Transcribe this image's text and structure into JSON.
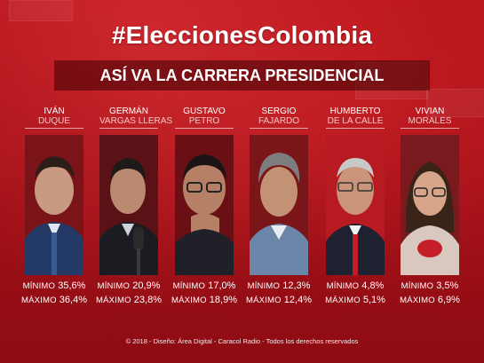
{
  "hashtag": "#EleccionesColombia",
  "subtitle": "ASÍ VA LA CARRERA PRESIDENCIAL",
  "candidates": [
    {
      "first": "IVÁN",
      "last": "DUQUE",
      "min_label": "MÍNIMO",
      "min": "35,6%",
      "max_label": "MÁXIMO",
      "max": "36,4%"
    },
    {
      "first": "GERMÁN",
      "last": "VARGAS LLERAS",
      "min_label": "MÍNIMO",
      "min": "20,9%",
      "max_label": "MÁXIMO",
      "max": "23,8%"
    },
    {
      "first": "GUSTAVO",
      "last": "PETRO",
      "min_label": "MÍNIMO",
      "min": "17,0%",
      "max_label": "MÁXIMO",
      "max": "18,9%"
    },
    {
      "first": "SERGIO",
      "last": "FAJARDO",
      "min_label": "MÍNIMO",
      "min": "12,3%",
      "max_label": "MÁXIMO",
      "max": "12,4%"
    },
    {
      "first": "HUMBERTO",
      "last": "DE LA CALLE",
      "min_label": "MÍNIMO",
      "min": "4,8%",
      "max_label": "MÁXIMO",
      "max": "5,1%"
    },
    {
      "first": "VIVIAN",
      "last": "MORALES",
      "min_label": "MÍNIMO",
      "min": "3,5%",
      "max_label": "MÁXIMO",
      "max": "6,9%"
    }
  ],
  "footer": "© 2018 - Diseño: Área Digital - Caracol Radio - Todos los derechos reservados",
  "colors": {
    "background": "#b3121a",
    "accent_text": "#f7c4c4",
    "title_bar": "#3c0004"
  }
}
